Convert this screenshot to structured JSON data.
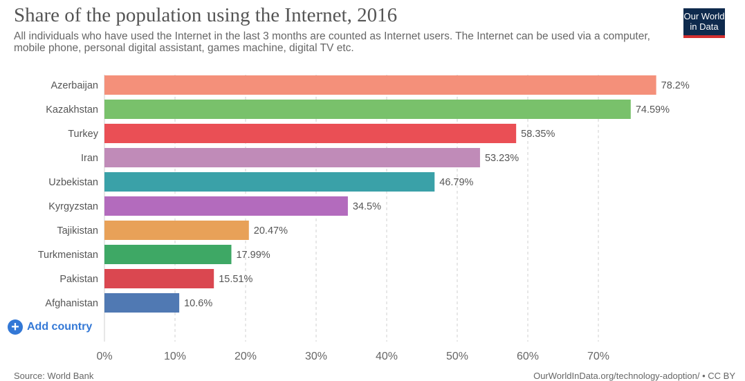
{
  "title": "Share of the population using the Internet, 2016",
  "subtitle": "All individuals who have used the Internet in the last 3 months are counted as Internet users. The Internet can be used via a computer, mobile phone, personal digital assistant, games machine, digital TV etc.",
  "logo": {
    "line1": "Our World",
    "line2": "in Data"
  },
  "add_country": {
    "icon": "plus-circle-icon",
    "label": "Add country"
  },
  "footer": {
    "source": "Source: World Bank",
    "link": "OurWorldInData.org/technology-adoption/ • CC BY"
  },
  "chart_data": {
    "type": "bar",
    "orientation": "horizontal",
    "title": "Share of the population using the Internet, 2016",
    "xlabel": "",
    "ylabel": "",
    "xlim": [
      0,
      80
    ],
    "ticks": [
      0,
      10,
      20,
      30,
      40,
      50,
      60,
      70
    ],
    "tick_labels": [
      "0%",
      "10%",
      "20%",
      "30%",
      "40%",
      "50%",
      "60%",
      "70%"
    ],
    "grid": "vertical dashed",
    "categories": [
      "Azerbaijan",
      "Kazakhstan",
      "Turkey",
      "Iran",
      "Uzbekistan",
      "Kyrgyzstan",
      "Tajikistan",
      "Turkmenistan",
      "Pakistan",
      "Afghanistan"
    ],
    "values": [
      78.2,
      74.59,
      58.35,
      53.23,
      46.79,
      34.5,
      20.47,
      17.99,
      15.51,
      10.6
    ],
    "value_labels": [
      "78.2%",
      "74.59%",
      "58.35%",
      "53.23%",
      "46.79%",
      "34.5%",
      "20.47%",
      "17.99%",
      "15.51%",
      "10.6%"
    ],
    "colors": [
      "#f4907a",
      "#79c16b",
      "#ea4f55",
      "#c08bb8",
      "#3aa1a8",
      "#b36bbd",
      "#e8a158",
      "#3ea865",
      "#da4750",
      "#5079b3"
    ]
  }
}
